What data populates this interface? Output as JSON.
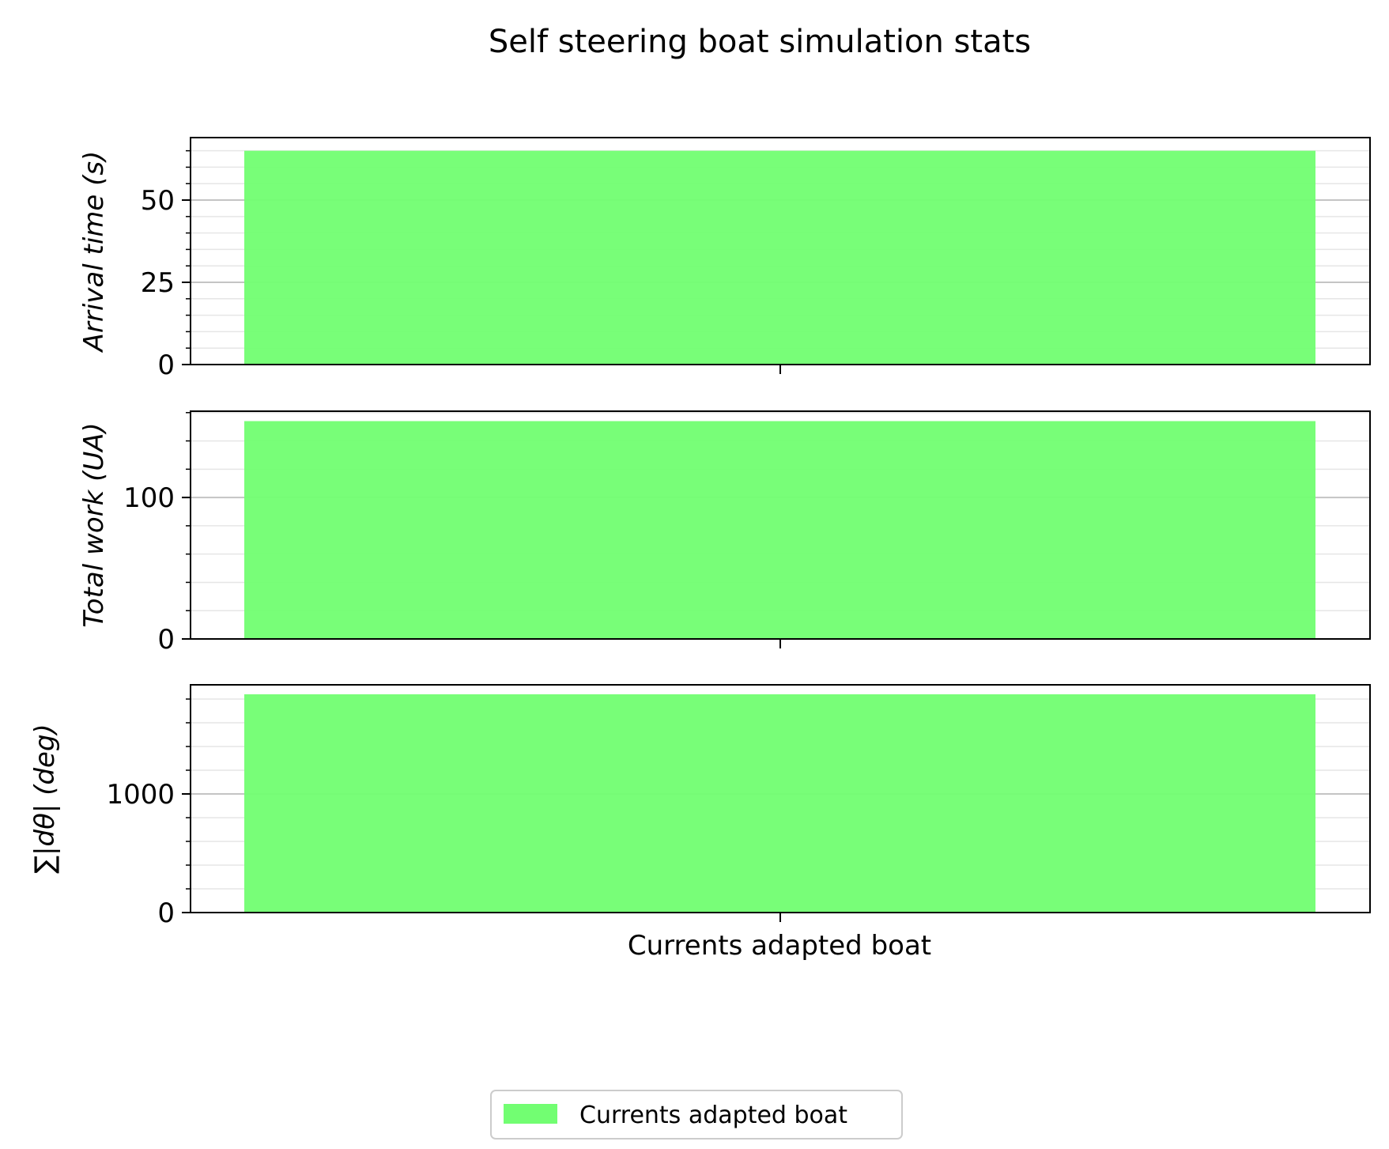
{
  "chart_data": {
    "type": "bar",
    "title": "Self steering boat simulation stats",
    "categories": [
      "Currents adapted boat"
    ],
    "bar_color": "#72fe72",
    "grid": true,
    "legend": {
      "placement": "bottom-center",
      "entries": [
        "Currents adapted boat"
      ]
    },
    "subplots": [
      {
        "ylabel": "Arrival time (s)",
        "values": [
          65
        ],
        "ylim": [
          0,
          69
        ],
        "major_ticks": [
          0,
          25,
          50
        ],
        "minor_step": 5
      },
      {
        "ylabel": "Total work (UA)",
        "values": [
          154
        ],
        "ylim": [
          0,
          161
        ],
        "major_ticks": [
          0,
          100
        ],
        "minor_step": 20
      },
      {
        "ylabel": "∑|dθ| (deg)",
        "values": [
          1840
        ],
        "ylim": [
          0,
          1920
        ],
        "major_ticks": [
          0,
          1000
        ],
        "minor_step": 200
      }
    ]
  }
}
